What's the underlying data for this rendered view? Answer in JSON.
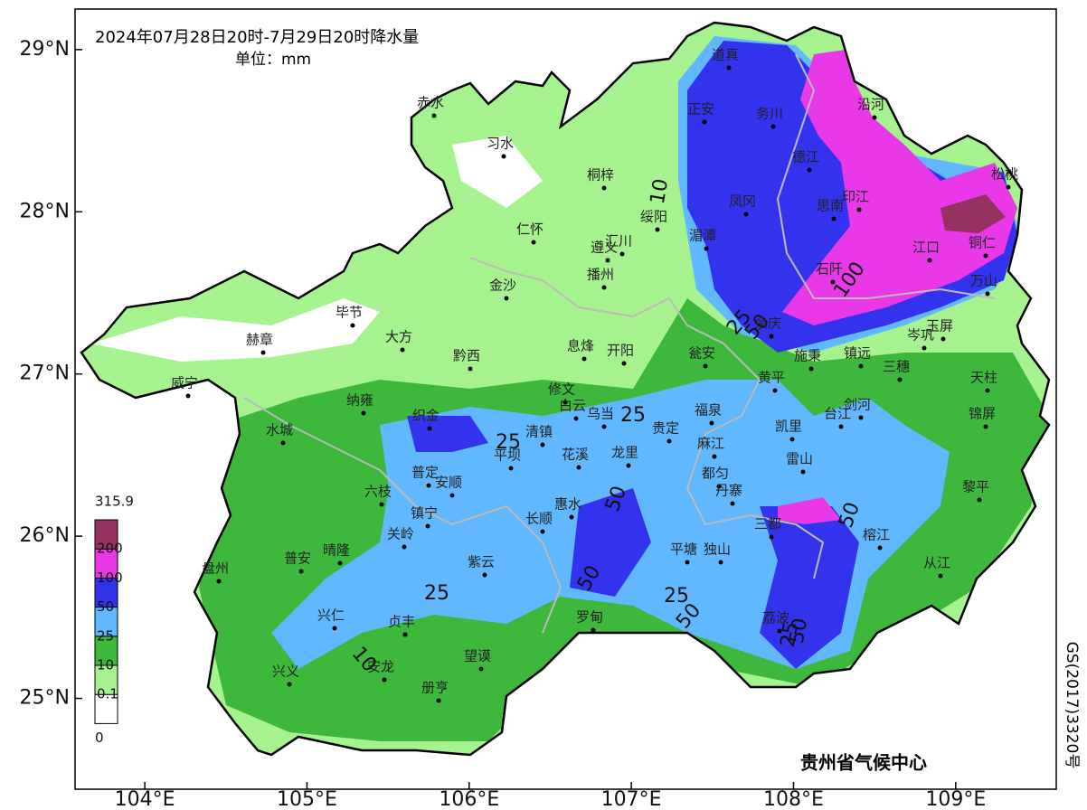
{
  "title": "2024年07月28日20时-7月29日20时降水量",
  "unit": "单位：mm",
  "credit": "贵州省气候中心",
  "approval": "GS(2017)3320号",
  "axes": {
    "xlim": [
      103.57,
      109.62
    ],
    "ylim": [
      24.44,
      29.25
    ],
    "xticks": [
      {
        "value": 104,
        "label": "104°E"
      },
      {
        "value": 105,
        "label": "105°E"
      },
      {
        "value": 106,
        "label": "106°E"
      },
      {
        "value": 107,
        "label": "107°E"
      },
      {
        "value": 108,
        "label": "108°E"
      },
      {
        "value": 109,
        "label": "109°E"
      }
    ],
    "yticks": [
      {
        "value": 25,
        "label": "25°N"
      },
      {
        "value": 26,
        "label": "26°N"
      },
      {
        "value": 27,
        "label": "27°N"
      },
      {
        "value": 28,
        "label": "28°N"
      },
      {
        "value": 29,
        "label": "29°N"
      }
    ]
  },
  "legend": {
    "levels": [
      0,
      0.1,
      10,
      25,
      50,
      100,
      200,
      315.9
    ],
    "colors": [
      "#ffffff",
      "#a6f28f",
      "#3db83d",
      "#61b8ff",
      "#3333ee",
      "#e838e8",
      "#963262"
    ]
  },
  "contour_labels": [
    10,
    100,
    25,
    50,
    25,
    25,
    50,
    50,
    25,
    50,
    25,
    10,
    50,
    25,
    50
  ],
  "cities": [
    "道真",
    "正安",
    "务川",
    "沿河",
    "赤水",
    "习水",
    "桐梓",
    "德江",
    "松桃",
    "凤冈",
    "思南",
    "印江",
    "绥阳",
    "仁怀",
    "湄潭",
    "遵义",
    "汇川",
    "江口",
    "铜仁",
    "播州",
    "石阡",
    "金沙",
    "万山",
    "毕节",
    "余庆",
    "岑巩",
    "玉屏",
    "赫章",
    "大方",
    "息烽",
    "开阳",
    "瓮安",
    "施秉",
    "镇远",
    "黔西",
    "三穗",
    "威宁",
    "黄平",
    "天柱",
    "修文",
    "纳雍",
    "剑河",
    "白云",
    "织金",
    "乌当",
    "台江",
    "福泉",
    "锦屏",
    "水城",
    "清镇",
    "贵定",
    "凯里",
    "麻江",
    "平坝",
    "花溪",
    "龙里",
    "雷山",
    "普定",
    "都匀",
    "六枝",
    "安顺",
    "黎平",
    "丹寨",
    "镇宁",
    "惠水",
    "三都",
    "关岭",
    "长顺",
    "榕江",
    "普安",
    "晴隆",
    "平塘",
    "独山",
    "盘州",
    "紫云",
    "从江",
    "兴仁",
    "罗甸",
    "贞丰",
    "荔波",
    "望谟",
    "兴义",
    "安龙",
    "册亨"
  ]
}
